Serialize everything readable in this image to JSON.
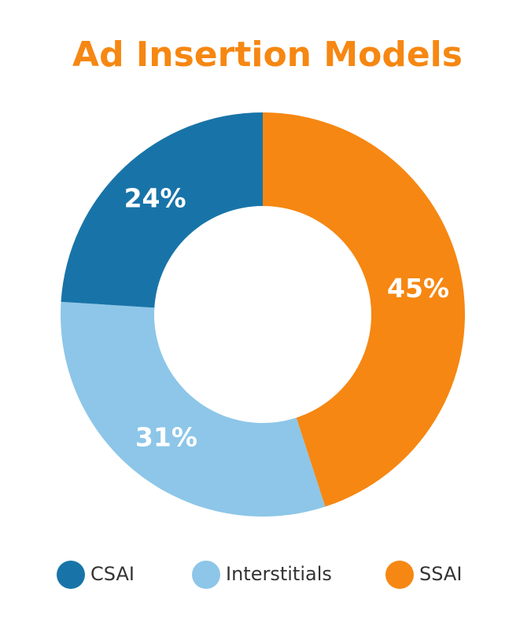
{
  "chart_data": {
    "type": "donut",
    "title": "Ad Insertion Models",
    "categories": [
      "CSAI",
      "Interstitials",
      "SSAI"
    ],
    "values": [
      24,
      31,
      45
    ],
    "value_labels": [
      "24%",
      "31%",
      "45%"
    ],
    "colors": [
      "#1874a8",
      "#8dc6e8",
      "#f68712"
    ],
    "legend": "bottom"
  }
}
